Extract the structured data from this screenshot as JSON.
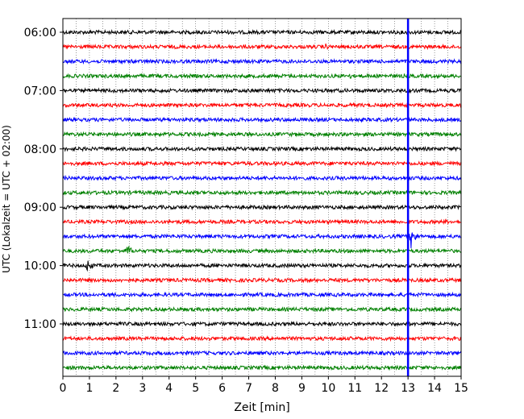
{
  "chart_data": {
    "type": "line",
    "title": "",
    "xlabel": "Zeit  [min]",
    "ylabel": "UTC (Lokalzeit = UTC + 02:00)",
    "xlim": [
      0,
      15
    ],
    "x_ticks": [
      "0",
      "1",
      "2",
      "3",
      "4",
      "5",
      "6",
      "7",
      "8",
      "9",
      "10",
      "11",
      "12",
      "13",
      "14",
      "15"
    ],
    "y_tick_labels": [
      "06:00",
      "07:00",
      "08:00",
      "09:00",
      "10:00",
      "11:00"
    ],
    "grid": "vertical-dotted",
    "legend": "none",
    "colors": {
      "black": "#000000",
      "red": "#ff0000",
      "blue": "#0000ff",
      "green": "#008000",
      "grid": "#555555"
    },
    "trace_interval_minutes": 15,
    "trace_start": "06:00",
    "trace_end": "11:45",
    "trace_color_cycle": [
      "black",
      "red",
      "blue",
      "green"
    ],
    "events": [
      {
        "trace": "06:15",
        "minute": 9.9,
        "amplitude": "small"
      },
      {
        "trace": "06:30",
        "minute": 13.5,
        "amplitude": "small"
      },
      {
        "trace": "06:45",
        "minute": 10.8,
        "amplitude": "small"
      },
      {
        "trace": "07:30",
        "minute": 11.0,
        "amplitude": "small"
      },
      {
        "trace": "09:15",
        "minute": 14.4,
        "amplitude": "small"
      },
      {
        "trace": "09:30",
        "minute": 13.1,
        "amplitude": "large"
      },
      {
        "trace": "09:45",
        "minute": 2.4,
        "amplitude": "medium"
      },
      {
        "trace": "09:45",
        "minute": 2.75,
        "amplitude": "small"
      },
      {
        "trace": "10:00",
        "minute": 0.9,
        "amplitude": "medium"
      },
      {
        "trace": "11:30",
        "minute": 4.6,
        "amplitude": "small"
      }
    ],
    "vertical_marker": {
      "minute": 13.0,
      "color": "blue"
    }
  }
}
